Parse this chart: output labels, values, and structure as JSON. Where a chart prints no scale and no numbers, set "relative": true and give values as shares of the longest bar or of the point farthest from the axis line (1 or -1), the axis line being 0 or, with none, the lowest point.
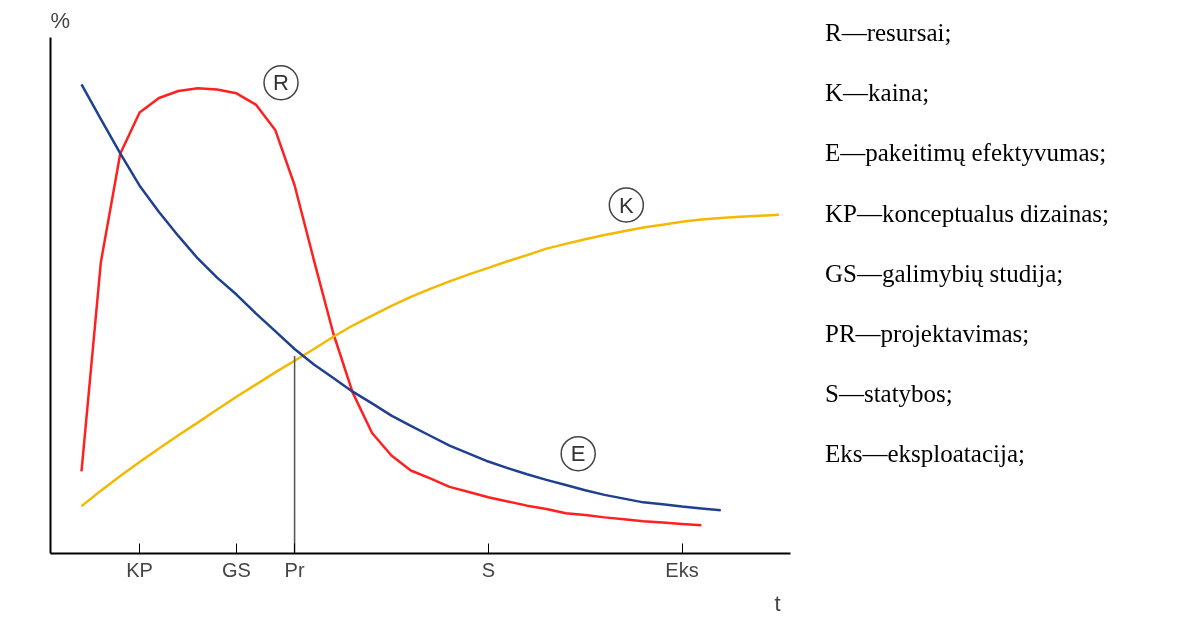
{
  "chart_data": {
    "type": "line",
    "relative": true,
    "xlabel": "t",
    "ylabel": "%",
    "categories": [
      null,
      null,
      null,
      null,
      "KP",
      null,
      null,
      null,
      null,
      "GS",
      null,
      null,
      "Pr",
      null,
      null,
      null,
      null,
      null,
      null,
      null,
      null,
      null,
      "S",
      null,
      null,
      null,
      null,
      null,
      null,
      null,
      null,
      null,
      "Eks",
      null,
      null,
      null,
      null,
      null
    ],
    "grid": false,
    "legend": false,
    "line_style": "solid",
    "marker": "none",
    "series": [
      {
        "name": "R",
        "color": "#ff2020",
        "values": [
          null,
          0.175,
          0.621,
          0.852,
          0.94,
          0.971,
          0.986,
          0.992,
          0.989,
          0.981,
          0.957,
          0.903,
          0.785,
          0.625,
          0.469,
          0.343,
          0.257,
          0.209,
          0.177,
          0.16,
          0.142,
          0.131,
          0.12,
          0.111,
          0.102,
          0.095,
          0.086,
          0.082,
          0.077,
          0.073,
          0.069,
          0.066,
          0.063,
          0.06,
          null,
          null,
          null,
          null
        ]
      },
      {
        "name": "K",
        "color": "#f5b800",
        "values": [
          null,
          0.101,
          0.134,
          0.165,
          0.195,
          0.224,
          0.252,
          0.279,
          0.307,
          0.334,
          0.36,
          0.386,
          0.411,
          0.436,
          0.462,
          0.486,
          0.507,
          0.528,
          0.547,
          0.564,
          0.58,
          0.595,
          0.609,
          0.623,
          0.636,
          0.65,
          0.66,
          0.67,
          0.679,
          0.687,
          0.695,
          0.701,
          0.707,
          0.712,
          0.715,
          0.718,
          0.72,
          0.722
        ]
      },
      {
        "name": "E",
        "color": "#1f3f8f",
        "values": [
          null,
          1.0,
          0.926,
          0.853,
          0.784,
          0.728,
          0.677,
          0.629,
          0.588,
          0.552,
          0.512,
          0.474,
          0.436,
          0.403,
          0.374,
          0.345,
          0.32,
          0.294,
          0.272,
          0.251,
          0.23,
          0.213,
          0.196,
          0.182,
          0.169,
          0.157,
          0.146,
          0.135,
          0.125,
          0.117,
          0.109,
          0.105,
          0.1,
          0.096,
          0.092,
          null,
          null,
          null
        ]
      },
      {
        "type": "bar",
        "color": "#555555",
        "values": [
          null,
          null,
          null,
          null,
          null,
          null,
          null,
          null,
          null,
          null,
          null,
          null,
          0.421,
          null,
          null,
          null,
          null,
          null,
          null,
          null,
          null,
          null,
          null,
          null,
          null,
          null,
          null,
          null,
          null,
          null,
          null,
          null,
          null,
          null,
          null,
          null,
          null,
          null
        ]
      }
    ],
    "annotations": [
      "R—resursai;",
      "K—kaina;",
      "E—pakeitimų efektyvumas;",
      "KP—konceptualus dizainas;",
      "GS—galimybių studija;",
      "PR—projektavimas;",
      "S—statybos;",
      "Eks—eksploatacija;"
    ]
  }
}
